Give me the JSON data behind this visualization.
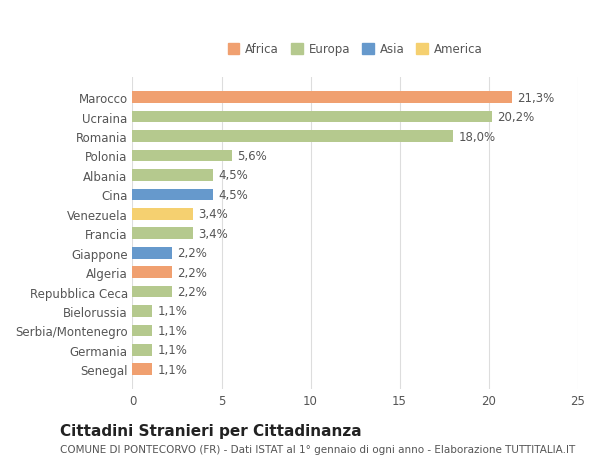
{
  "countries": [
    "Marocco",
    "Ucraina",
    "Romania",
    "Polonia",
    "Albania",
    "Cina",
    "Venezuela",
    "Francia",
    "Giappone",
    "Algeria",
    "Repubblica Ceca",
    "Bielorussia",
    "Serbia/Montenegro",
    "Germania",
    "Senegal"
  ],
  "values": [
    21.3,
    20.2,
    18.0,
    5.6,
    4.5,
    4.5,
    3.4,
    3.4,
    2.2,
    2.2,
    2.2,
    1.1,
    1.1,
    1.1,
    1.1
  ],
  "labels": [
    "21,3%",
    "20,2%",
    "18,0%",
    "5,6%",
    "4,5%",
    "4,5%",
    "3,4%",
    "3,4%",
    "2,2%",
    "2,2%",
    "2,2%",
    "1,1%",
    "1,1%",
    "1,1%",
    "1,1%"
  ],
  "continents": [
    "Africa",
    "Europa",
    "Europa",
    "Europa",
    "Europa",
    "Asia",
    "America",
    "Europa",
    "Asia",
    "Africa",
    "Europa",
    "Europa",
    "Europa",
    "Europa",
    "Africa"
  ],
  "continent_colors": {
    "Africa": "#F0A070",
    "Europa": "#B5C98E",
    "Asia": "#6699CC",
    "America": "#F5D070"
  },
  "legend_order": [
    "Africa",
    "Europa",
    "Asia",
    "America"
  ],
  "xlim": [
    0,
    25
  ],
  "xticks": [
    0,
    5,
    10,
    15,
    20,
    25
  ],
  "title": "Cittadini Stranieri per Cittadinanza",
  "subtitle": "COMUNE DI PONTECORVO (FR) - Dati ISTAT al 1° gennaio di ogni anno - Elaborazione TUTTITALIA.IT",
  "background_color": "#ffffff",
  "bar_height": 0.6,
  "grid_color": "#dddddd",
  "label_fontsize": 8.5,
  "tick_fontsize": 8.5,
  "title_fontsize": 11,
  "subtitle_fontsize": 7.5
}
